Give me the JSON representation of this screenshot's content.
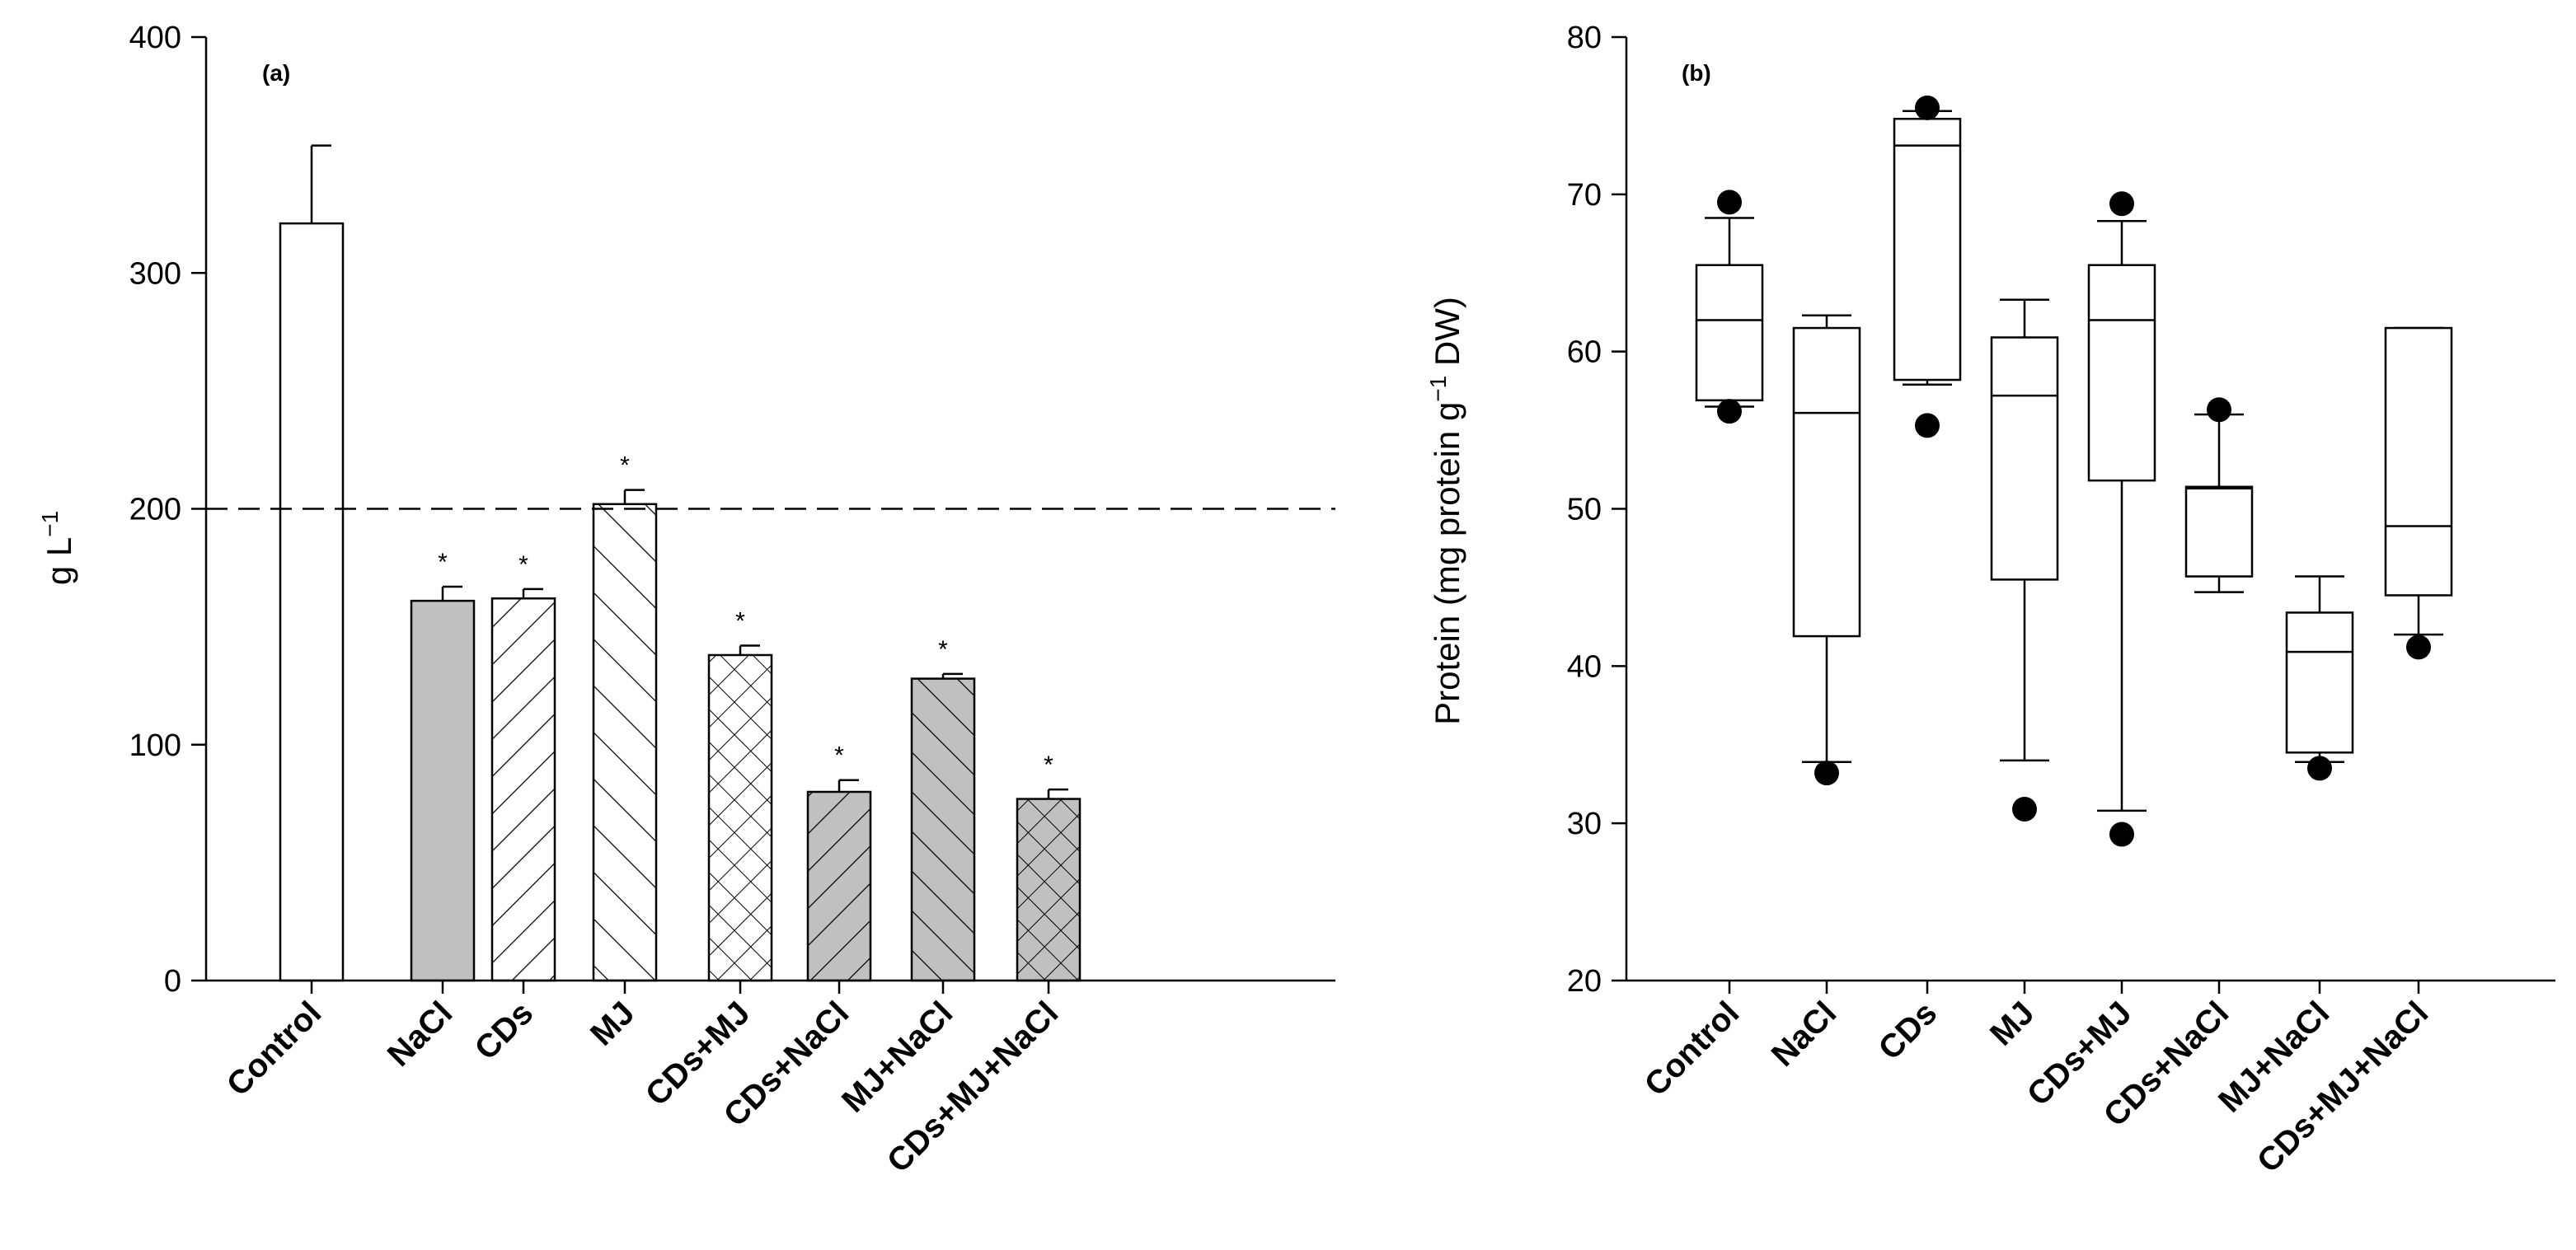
{
  "chart_data": [
    {
      "type": "bar",
      "panel_label": "(a)",
      "title": "",
      "xlabel": "",
      "ylabel": "g L",
      "ylabel_exponent": "−1",
      "ylim": [
        0,
        400
      ],
      "yticks": [
        "0",
        "100",
        "200",
        "300",
        "400"
      ],
      "reference_line": 200,
      "categories": [
        "Control",
        "NaCl",
        "CDs",
        "MJ",
        "CDs+MJ",
        "CDs+NaCl",
        "MJ+NaCl",
        "CDs+MJ+NaCl"
      ],
      "values": [
        321,
        161,
        162,
        202,
        138,
        80,
        128,
        77
      ],
      "errors": [
        33,
        6,
        4,
        6,
        4,
        5,
        2,
        4
      ],
      "significance": [
        "",
        "*",
        "*",
        "*",
        "*",
        "*",
        "*",
        "*"
      ],
      "fills": [
        "white",
        "gray",
        "white-diag-down",
        "white-diag-up-wide",
        "white-cross",
        "gray-diag-down",
        "gray-diag-up",
        "gray-cross"
      ]
    },
    {
      "type": "box",
      "panel_label": "(b)",
      "title": "",
      "xlabel": "",
      "ylabel": "Protein (mg protein g",
      "ylabel_exponent": "−1",
      "ylabel_suffix": " DW)",
      "ylim": [
        20,
        80
      ],
      "yticks": [
        "20",
        "30",
        "40",
        "50",
        "60",
        "70",
        "80"
      ],
      "categories": [
        "Control",
        "NaCl",
        "CDs",
        "MJ",
        "CDs+MJ",
        "CDs+NaCl",
        "MJ+NaCl",
        "CDs+MJ+NaCl"
      ],
      "boxes": [
        {
          "whisker_low": 56.5,
          "q1": 56.9,
          "median": 62.0,
          "q3": 65.5,
          "whisker_high": 68.5,
          "outliers": [
            56.2,
            69.5
          ]
        },
        {
          "whisker_low": 33.9,
          "q1": 41.9,
          "median": 56.1,
          "q3": 61.5,
          "whisker_high": 62.3,
          "outliers": [
            33.2
          ]
        },
        {
          "whisker_low": 57.9,
          "q1": 58.2,
          "median": 73.1,
          "q3": 74.8,
          "whisker_high": 75.3,
          "outliers": [
            55.3,
            75.5
          ]
        },
        {
          "whisker_low": 34.0,
          "q1": 45.5,
          "median": 57.2,
          "q3": 60.9,
          "whisker_high": 63.3,
          "outliers": [
            30.9
          ]
        },
        {
          "whisker_low": 30.8,
          "q1": 51.8,
          "median": 62.0,
          "q3": 65.5,
          "whisker_high": 68.3,
          "outliers": [
            29.3,
            69.4
          ]
        },
        {
          "whisker_low": 44.7,
          "q1": 45.7,
          "median": 51.3,
          "q3": 51.4,
          "whisker_high": 56.0,
          "outliers": [
            56.3
          ]
        },
        {
          "whisker_low": 33.9,
          "q1": 34.5,
          "median": 40.9,
          "q3": 43.4,
          "whisker_high": 45.7,
          "outliers": [
            33.5
          ]
        },
        {
          "whisker_low": 42.0,
          "q1": 44.5,
          "median": 48.9,
          "q3": 61.5,
          "whisker_high": 61.5,
          "outliers": [
            41.2
          ]
        }
      ]
    }
  ]
}
